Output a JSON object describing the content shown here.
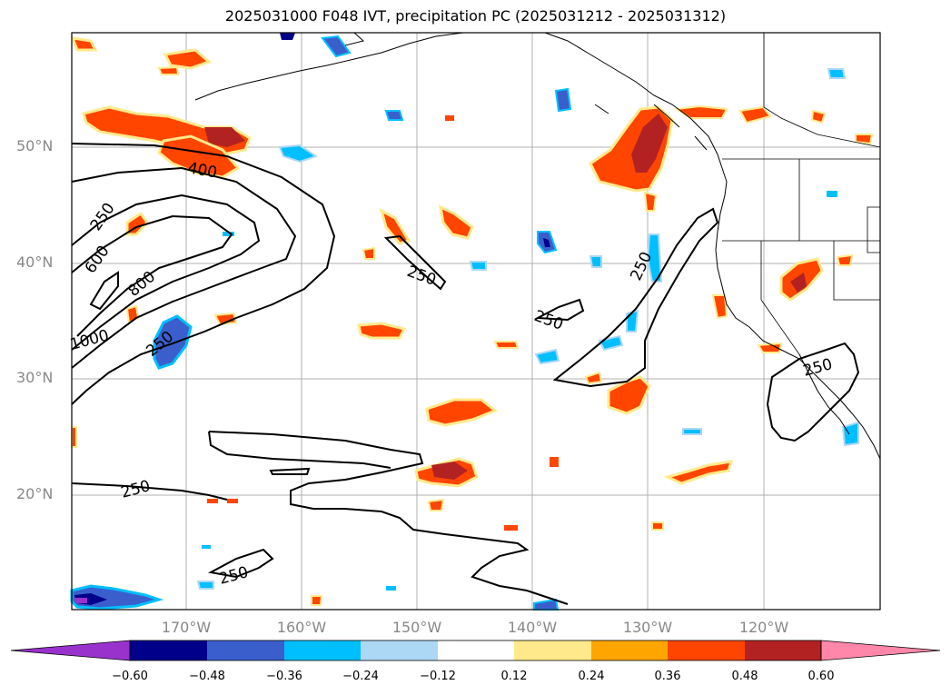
{
  "title": "2025031000 F048 IVT, precipitation PC (2025031212 - 2025031312)",
  "lat_labels": [
    "50°N",
    "40°N",
    "30°N",
    "20°N"
  ],
  "lon_labels": [
    "170°W",
    "160°W",
    "150°W",
    "140°W",
    "130°W",
    "120°W"
  ],
  "contour_labels": [
    "400",
    "250",
    "600",
    "800",
    "250",
    "250",
    "250",
    "250",
    "250",
    "250",
    "250",
    "1000"
  ],
  "colorbar": {
    "ticks": [
      "−0.60",
      "−0.48",
      "−0.36",
      "−0.24",
      "−0.12",
      "0.12",
      "0.24",
      "0.36",
      "0.48",
      "0.60"
    ],
    "colors": [
      "#9932cc",
      "#00008b",
      "#3a5fcd",
      "#00bfff",
      "#add8f5",
      "#ffffff",
      "#ffe98a",
      "#ffa500",
      "#ff4500",
      "#b22222",
      "#ff88aa"
    ]
  }
}
